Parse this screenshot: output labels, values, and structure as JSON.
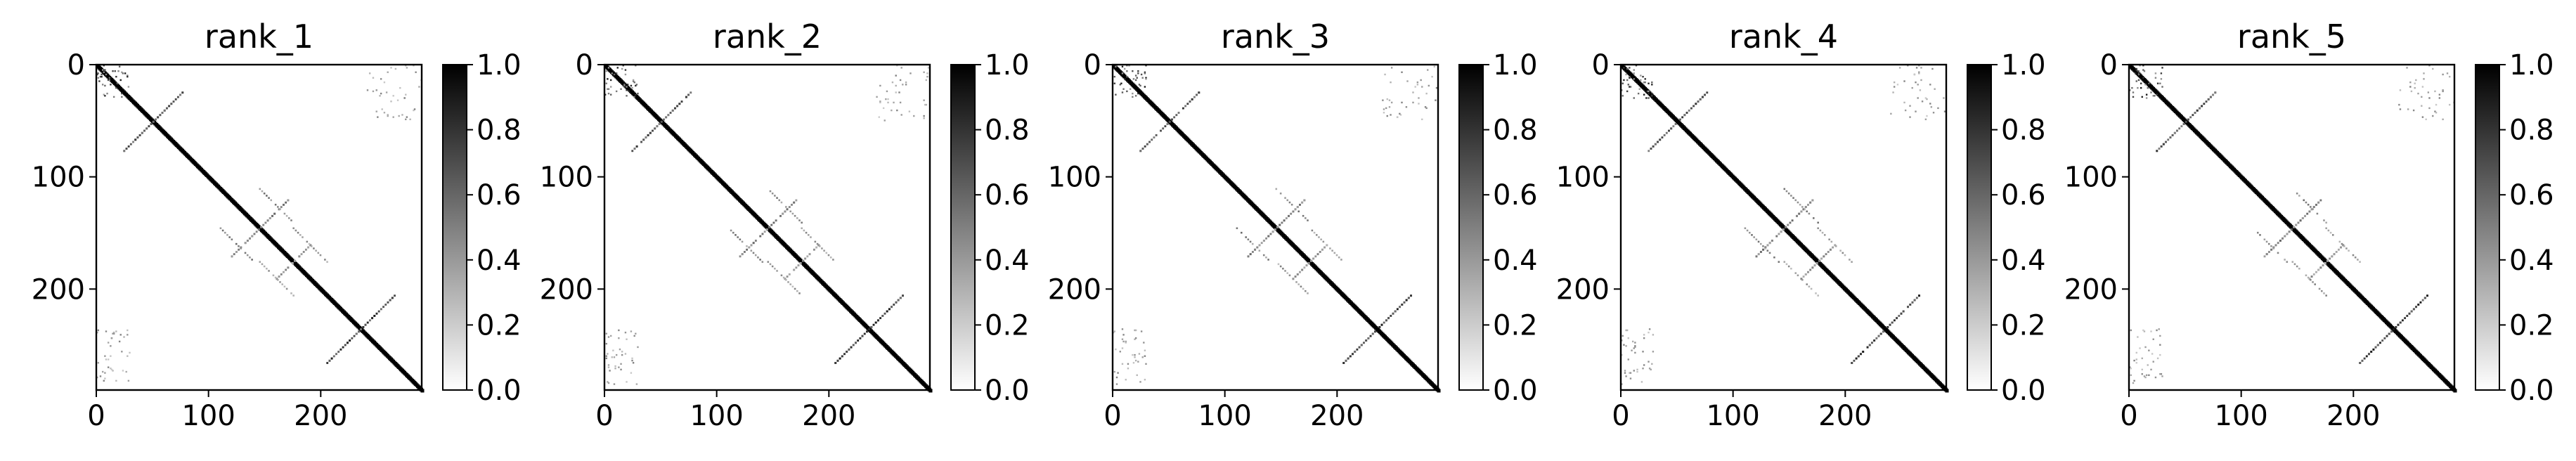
{
  "figure": {
    "titles": [
      "rank_1",
      "rank_2",
      "rank_3",
      "rank_4",
      "rank_5"
    ]
  },
  "chart_data": [
    {
      "type": "heatmap",
      "title": "rank_1",
      "matrix_size": 290,
      "x_ticks": [
        0,
        100,
        200
      ],
      "y_ticks": [
        0,
        100,
        200
      ],
      "colorbar": {
        "range": [
          0.0,
          1.0
        ],
        "ticks": [
          "0.0",
          "0.2",
          "0.4",
          "0.6",
          "0.8",
          "1.0"
        ],
        "colormap": "Greys"
      },
      "features": {
        "main_diagonal": {
          "from": 0,
          "to": 290,
          "value": 1.0
        },
        "antidiagonals": [
          {
            "center_i": 50,
            "center_j": 50,
            "from": 24,
            "to": 76,
            "value": 0.8
          },
          {
            "center_i": 145,
            "center_j": 145,
            "from": 120,
            "to": 170,
            "value": 0.6
          },
          {
            "center_i": 235,
            "center_j": 235,
            "from": 205,
            "to": 265,
            "value": 0.9
          },
          {
            "center_i": 175,
            "center_j": 175,
            "from": 160,
            "to": 190,
            "value": 0.5
          }
        ],
        "parallel_bands": [
          {
            "offset": 35,
            "from": 110,
            "to": 140,
            "value": 0.6
          },
          {
            "offset": 30,
            "from": 145,
            "to": 175,
            "value": 0.5
          }
        ],
        "corner_blocks": [
          {
            "i_from": 0,
            "i_to": 30,
            "j_from": 0,
            "j_to": 30,
            "value": 0.9
          },
          {
            "i_from": 235,
            "i_to": 285,
            "j_from": 0,
            "j_to": 30,
            "value": 0.5
          },
          {
            "i_from": 0,
            "i_to": 50,
            "j_from": 240,
            "j_to": 290,
            "value": 0.5
          }
        ]
      }
    },
    {
      "type": "heatmap",
      "title": "rank_2",
      "matrix_size": 290,
      "x_ticks": [
        0,
        100,
        200
      ],
      "y_ticks": [
        0,
        100,
        200
      ],
      "colorbar": {
        "range": [
          0.0,
          1.0
        ],
        "ticks": [
          "0.0",
          "0.2",
          "0.4",
          "0.6",
          "0.8",
          "1.0"
        ],
        "colormap": "Greys"
      },
      "features": "same_as_rank_1"
    },
    {
      "type": "heatmap",
      "title": "rank_3",
      "matrix_size": 290,
      "x_ticks": [
        0,
        100,
        200
      ],
      "y_ticks": [
        0,
        100,
        200
      ],
      "colorbar": {
        "range": [
          0.0,
          1.0
        ],
        "ticks": [
          "0.0",
          "0.2",
          "0.4",
          "0.6",
          "0.8",
          "1.0"
        ],
        "colormap": "Greys"
      },
      "features": "same_as_rank_1"
    },
    {
      "type": "heatmap",
      "title": "rank_4",
      "matrix_size": 290,
      "x_ticks": [
        0,
        100,
        200
      ],
      "y_ticks": [
        0,
        100,
        200
      ],
      "colorbar": {
        "range": [
          0.0,
          1.0
        ],
        "ticks": [
          "0.0",
          "0.2",
          "0.4",
          "0.6",
          "0.8",
          "1.0"
        ],
        "colormap": "Greys"
      },
      "features": "same_as_rank_1"
    },
    {
      "type": "heatmap",
      "title": "rank_5",
      "matrix_size": 290,
      "x_ticks": [
        0,
        100,
        200
      ],
      "y_ticks": [
        0,
        100,
        200
      ],
      "colorbar": {
        "range": [
          0.0,
          1.0
        ],
        "ticks": [
          "0.0",
          "0.2",
          "0.4",
          "0.6",
          "0.8",
          "1.0"
        ],
        "colormap": "Greys"
      },
      "features": "same_as_rank_1"
    }
  ]
}
